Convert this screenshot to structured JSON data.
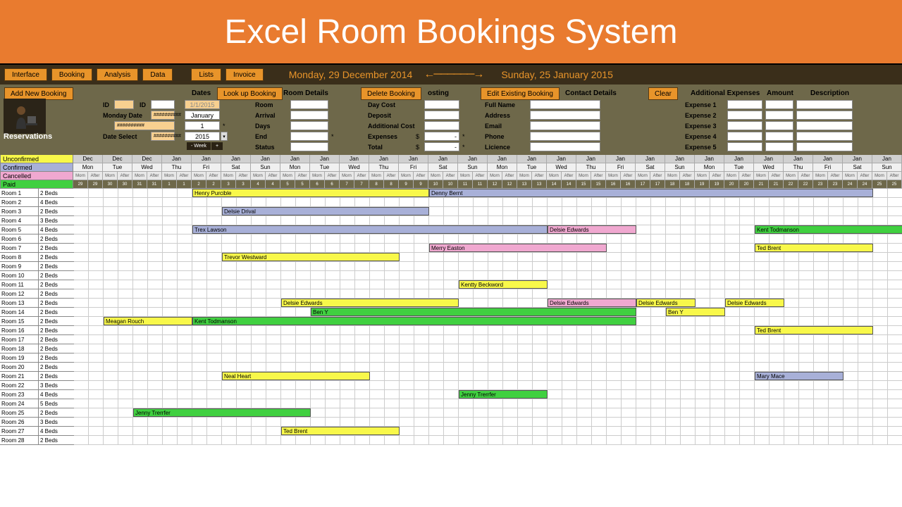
{
  "banner": {
    "title": "Excel Room Bookings System"
  },
  "colors": {
    "banner_bg": "#e97b2f",
    "toolbar_bg": "#3a2e1a",
    "btn_bg": "#e8942a",
    "ctrl_bg": "#6e684a",
    "unconfirmed": "#f8f84a",
    "confirmed": "#a8b0d8",
    "cancelled": "#f0a8d0",
    "paid": "#40d040"
  },
  "toolbar": {
    "buttons": [
      "Interface",
      "Booking",
      "Analysis",
      "Data",
      "Lists",
      "Invoice"
    ],
    "date_start": "Monday, 29 December 2014",
    "date_end": "Sunday, 25 January 2015"
  },
  "controls": {
    "add_new": "Add New Booking",
    "lookup": "Look up Booking",
    "delete": "Delete Booking",
    "edit": "Edit Existing Booking",
    "clear": "Clear",
    "dates_hdr": "Dates",
    "room_details": "Room Details",
    "costing": "osting",
    "contact": "Contact Details",
    "add_exp": "Additional Expenses",
    "amount": "Amount",
    "description": "Description",
    "id1": "ID",
    "id2": "ID",
    "mon_date": "Monday Date",
    "date_sel": "Date Select",
    "date_val": "1/1/2015",
    "month": "January",
    "day_num": "1",
    "year": "2015",
    "hash": "##########",
    "room": "Room",
    "arrival": "Arrival",
    "days": "Days",
    "end": "End",
    "status": "Status",
    "day_cost": "Day Cost",
    "deposit": "Deposit",
    "add_cost": "Additional Cost",
    "expenses": "Expenses",
    "total": "Total",
    "dollar": "$",
    "dash": "-",
    "star": "*",
    "full_name": "Full Name",
    "address": "Address",
    "email": "Email",
    "phone": "Phone",
    "licence": "Licience",
    "exp1": "Expense 1",
    "exp2": "Expense 2",
    "exp3": "Expense 3",
    "exp4": "Expense 4",
    "exp5": "Expense 5",
    "wk_minus": "- Week",
    "wk_plus": "+",
    "reservations": "Reservations"
  },
  "legend": {
    "unconfirmed": "Unconfirmed",
    "confirmed": "Confirmed",
    "cancelled": "Cancelled",
    "paid": "Paid"
  },
  "calendar": {
    "months": [
      "Dec",
      "Dec",
      "Dec",
      "Jan",
      "Jan",
      "Jan",
      "Jan",
      "Jan",
      "Jan",
      "Jan",
      "Jan",
      "Jan",
      "Jan",
      "Jan",
      "Jan",
      "Jan",
      "Jan",
      "Jan",
      "Jan",
      "Jan",
      "Jan",
      "Jan",
      "Jan",
      "Jan",
      "Jan",
      "Jan",
      "Jan",
      "Jan"
    ],
    "dow": [
      "Mon",
      "Tue",
      "Wed",
      "Thu",
      "Fri",
      "Sat",
      "Sun",
      "Mon",
      "Tue",
      "Wed",
      "Thu",
      "Fri",
      "Sat",
      "Sun",
      "Mon",
      "Tue",
      "Wed",
      "Thu",
      "Fri",
      "Sat",
      "Sun",
      "Mon",
      "Tue",
      "Wed",
      "Thu",
      "Fri",
      "Sat",
      "Sun"
    ],
    "days": [
      29,
      30,
      31,
      1,
      2,
      3,
      4,
      5,
      6,
      7,
      8,
      9,
      10,
      11,
      12,
      13,
      14,
      15,
      16,
      17,
      18,
      19,
      20,
      21,
      22,
      23,
      24,
      25
    ],
    "sub": "Morn After"
  },
  "rooms": [
    {
      "n": "Room 1",
      "b": "2 Beds"
    },
    {
      "n": "Room 2",
      "b": "4 Beds"
    },
    {
      "n": "Room 3",
      "b": "2 Beds"
    },
    {
      "n": "Room 4",
      "b": "3 Beds"
    },
    {
      "n": "Room 5",
      "b": "4 Beds"
    },
    {
      "n": "Room 6",
      "b": "2 Beds"
    },
    {
      "n": "Room 7",
      "b": "2 Beds"
    },
    {
      "n": "Room 8",
      "b": "2 Beds"
    },
    {
      "n": "Room 9",
      "b": "2 Beds"
    },
    {
      "n": "Room 10",
      "b": "2 Beds"
    },
    {
      "n": "Room 11",
      "b": "2 Beds"
    },
    {
      "n": "Room 12",
      "b": "2 Beds"
    },
    {
      "n": "Room 13",
      "b": "2 Beds"
    },
    {
      "n": "Room 14",
      "b": "2 Beds"
    },
    {
      "n": "Room 15",
      "b": "2 Beds"
    },
    {
      "n": "Room 16",
      "b": "2 Beds"
    },
    {
      "n": "Room 17",
      "b": "2 Beds"
    },
    {
      "n": "Room 18",
      "b": "2 Beds"
    },
    {
      "n": "Room 19",
      "b": "2 Beds"
    },
    {
      "n": "Room 20",
      "b": "2 Beds"
    },
    {
      "n": "Room 21",
      "b": "2 Beds"
    },
    {
      "n": "Room 22",
      "b": "3 Beds"
    },
    {
      "n": "Room 23",
      "b": "4 Beds"
    },
    {
      "n": "Room 24",
      "b": "5 Beds"
    },
    {
      "n": "Room 25",
      "b": "2 Beds"
    },
    {
      "n": "Room 26",
      "b": "3 Beds"
    },
    {
      "n": "Room 27",
      "b": "4 Beds"
    },
    {
      "n": "Room 28",
      "b": "2 Beds"
    }
  ],
  "bookings": [
    {
      "room": 0,
      "start": 8,
      "len": 16,
      "name": "Henry Purcible",
      "status": "unconfirmed"
    },
    {
      "room": 0,
      "start": 24,
      "len": 30,
      "name": "Denny Bernt",
      "status": "confirmed"
    },
    {
      "room": 2,
      "start": 10,
      "len": 14,
      "name": "Delsie Drival",
      "status": "confirmed"
    },
    {
      "room": 4,
      "start": 8,
      "len": 24,
      "name": "Trex Lawson",
      "status": "confirmed"
    },
    {
      "room": 4,
      "start": 32,
      "len": 6,
      "name": "Delsie Edwards",
      "status": "cancelled"
    },
    {
      "room": 4,
      "start": 46,
      "len": 10,
      "name": "Kent Todmanson",
      "status": "paid"
    },
    {
      "room": 6,
      "start": 24,
      "len": 12,
      "name": "Merry Easton",
      "status": "cancelled"
    },
    {
      "room": 6,
      "start": 46,
      "len": 8,
      "name": "Ted Brent",
      "status": "unconfirmed"
    },
    {
      "room": 7,
      "start": 10,
      "len": 12,
      "name": "Trevor Westward",
      "status": "unconfirmed"
    },
    {
      "room": 10,
      "start": 26,
      "len": 6,
      "name": "Kentty Beckword",
      "status": "unconfirmed"
    },
    {
      "room": 12,
      "start": 14,
      "len": 12,
      "name": "Delsie Edwards",
      "status": "unconfirmed"
    },
    {
      "room": 12,
      "start": 32,
      "len": 6,
      "name": "Delsie Edwards",
      "status": "cancelled"
    },
    {
      "room": 12,
      "start": 38,
      "len": 4,
      "name": "Delsie Edwards",
      "status": "unconfirmed"
    },
    {
      "room": 12,
      "start": 44,
      "len": 4,
      "name": "Delsie Edwards",
      "status": "unconfirmed"
    },
    {
      "room": 13,
      "start": 16,
      "len": 22,
      "name": "Ben Y",
      "status": "paid"
    },
    {
      "room": 13,
      "start": 40,
      "len": 4,
      "name": "Ben Y",
      "status": "unconfirmed"
    },
    {
      "room": 14,
      "start": 2,
      "len": 6,
      "name": "Meagan Rouch",
      "status": "unconfirmed"
    },
    {
      "room": 14,
      "start": 8,
      "len": 30,
      "name": "Kent Todmanson",
      "status": "paid"
    },
    {
      "room": 15,
      "start": 46,
      "len": 8,
      "name": "Ted Brent",
      "status": "unconfirmed"
    },
    {
      "room": 20,
      "start": 10,
      "len": 10,
      "name": "Neal Heart",
      "status": "unconfirmed"
    },
    {
      "room": 20,
      "start": 46,
      "len": 6,
      "name": "Mary Mace",
      "status": "confirmed"
    },
    {
      "room": 22,
      "start": 26,
      "len": 6,
      "name": "Jenny Trerrfer",
      "status": "paid"
    },
    {
      "room": 24,
      "start": 4,
      "len": 12,
      "name": "Jenny Trerrfer",
      "status": "paid"
    },
    {
      "room": 26,
      "start": 14,
      "len": 8,
      "name": "Ted Brent",
      "status": "unconfirmed"
    }
  ]
}
